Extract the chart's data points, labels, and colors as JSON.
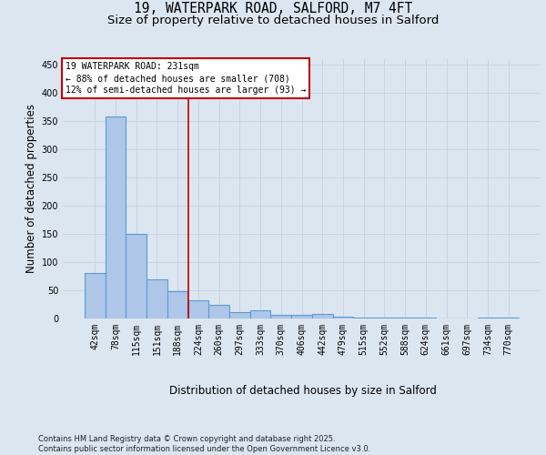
{
  "title_line1": "19, WATERPARK ROAD, SALFORD, M7 4FT",
  "title_line2": "Size of property relative to detached houses in Salford",
  "xlabel": "Distribution of detached houses by size in Salford",
  "ylabel": "Number of detached properties",
  "categories": [
    "42sqm",
    "78sqm",
    "115sqm",
    "151sqm",
    "188sqm",
    "224sqm",
    "260sqm",
    "297sqm",
    "333sqm",
    "370sqm",
    "406sqm",
    "442sqm",
    "479sqm",
    "515sqm",
    "552sqm",
    "588sqm",
    "624sqm",
    "661sqm",
    "697sqm",
    "734sqm",
    "770sqm"
  ],
  "values": [
    80,
    358,
    150,
    70,
    48,
    33,
    25,
    12,
    15,
    6,
    6,
    8,
    4,
    2,
    1,
    1,
    1,
    0,
    0,
    1,
    2
  ],
  "bar_color": "#aec6e8",
  "bar_edge_color": "#5b9bd5",
  "bar_linewidth": 0.8,
  "grid_color": "#c8d4e3",
  "background_color": "#dce6f1",
  "plot_bg_color": "#dce6f1",
  "vline_color": "#c00000",
  "vline_x_index": 5,
  "annotation_box_text": "19 WATERPARK ROAD: 231sqm\n← 88% of detached houses are smaller (708)\n12% of semi-detached houses are larger (93) →",
  "annotation_box_color": "#c00000",
  "annotation_box_bg": "#ffffff",
  "annotation_fontsize": 7,
  "ylim": [
    0,
    460
  ],
  "yticks": [
    0,
    50,
    100,
    150,
    200,
    250,
    300,
    350,
    400,
    450
  ],
  "footnote": "Contains HM Land Registry data © Crown copyright and database right 2025.\nContains public sector information licensed under the Open Government Licence v3.0.",
  "title_fontsize": 10.5,
  "subtitle_fontsize": 9.5,
  "axis_label_fontsize": 8.5,
  "tick_fontsize": 7,
  "footnote_fontsize": 6
}
